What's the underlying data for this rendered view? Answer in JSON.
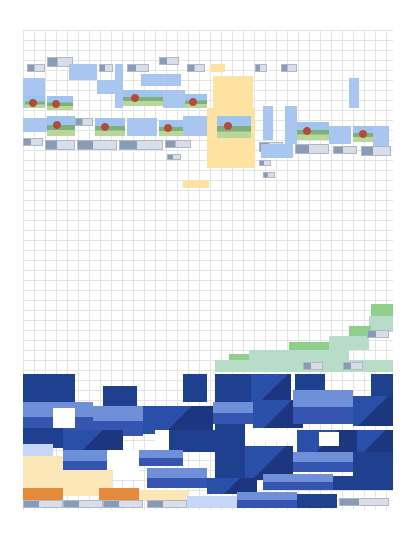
{
  "page": {
    "background": "#ffffff",
    "grid_line_color": "#e4e4e4"
  },
  "sheet": {
    "name": "spreadsheet-canvas"
  },
  "palette": {
    "sky_blue": "#a9c6f0",
    "sand": "#fde2a1",
    "mint": "#b7ddc8",
    "green": "#8fcf8b",
    "navy": "#1f3f8f",
    "blue_image": "#3555b0",
    "cream": "#fbe6b8",
    "orange": "#e58a3a"
  }
}
